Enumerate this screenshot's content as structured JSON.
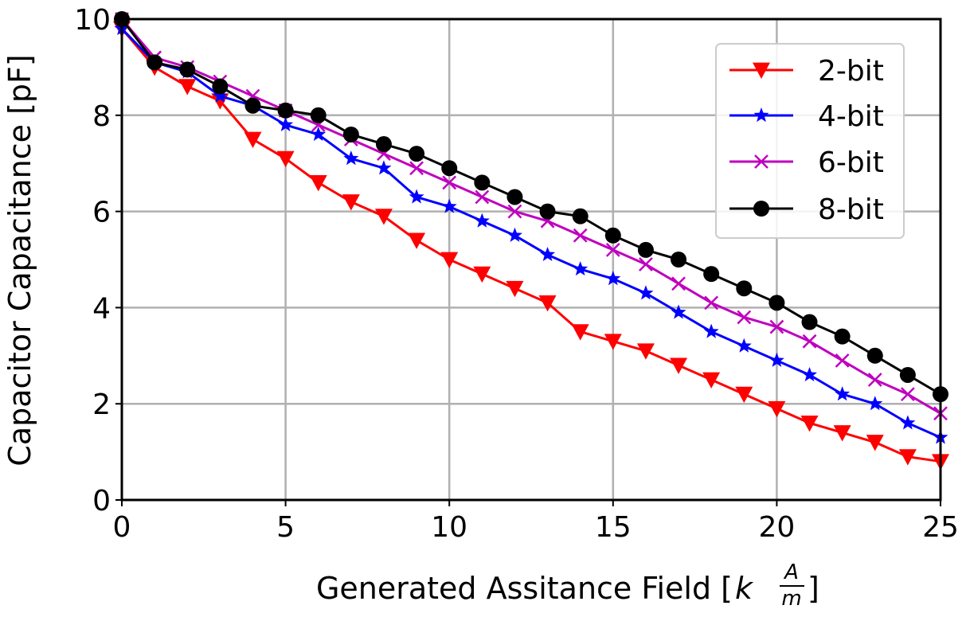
{
  "chart_data": {
    "type": "line",
    "title": "",
    "xlabel": "Generated Assitance Field [",
    "xlabel_unit": {
      "base": "k",
      "numerator": "A",
      "denominator": "m"
    },
    "xlabel_suffix": "]",
    "ylabel": "Capacitor Capacitance [pF]",
    "xlim": [
      0,
      25
    ],
    "ylim": [
      0,
      10
    ],
    "xticks": [
      0,
      5,
      10,
      15,
      20,
      25
    ],
    "yticks": [
      0,
      2,
      4,
      6,
      8,
      10
    ],
    "grid": true,
    "legend_position": "top-right",
    "x": [
      0,
      1,
      2,
      3,
      4,
      5,
      6,
      7,
      8,
      9,
      10,
      11,
      12,
      13,
      14,
      15,
      16,
      17,
      18,
      19,
      20,
      21,
      22,
      23,
      24,
      25
    ],
    "series": [
      {
        "name": "2-bit",
        "color": "#ff0000",
        "marker": "triangle-down",
        "values": [
          9.8,
          9.0,
          8.6,
          8.3,
          7.5,
          7.1,
          6.6,
          6.2,
          5.9,
          5.4,
          5.0,
          4.7,
          4.4,
          4.1,
          3.5,
          3.3,
          3.1,
          2.8,
          2.5,
          2.2,
          1.9,
          1.6,
          1.4,
          1.2,
          0.9,
          0.8
        ]
      },
      {
        "name": "4-bit",
        "color": "#0000ff",
        "marker": "star",
        "values": [
          9.8,
          9.1,
          8.9,
          8.4,
          8.2,
          7.8,
          7.6,
          7.1,
          6.9,
          6.3,
          6.1,
          5.8,
          5.5,
          5.1,
          4.8,
          4.6,
          4.3,
          3.9,
          3.5,
          3.2,
          2.9,
          2.6,
          2.2,
          2.0,
          1.6,
          1.3
        ]
      },
      {
        "name": "6-bit",
        "color": "#bf00bf",
        "marker": "x",
        "values": [
          10.0,
          9.2,
          9.0,
          8.7,
          8.4,
          8.1,
          7.8,
          7.5,
          7.2,
          6.9,
          6.6,
          6.3,
          6.0,
          5.8,
          5.5,
          5.2,
          4.9,
          4.5,
          4.1,
          3.8,
          3.6,
          3.3,
          2.9,
          2.5,
          2.2,
          1.8
        ]
      },
      {
        "name": "8-bit",
        "color": "#000000",
        "marker": "circle",
        "values": [
          10.0,
          9.1,
          8.95,
          8.6,
          8.2,
          8.1,
          8.0,
          7.6,
          7.4,
          7.2,
          6.9,
          6.6,
          6.3,
          6.0,
          5.9,
          5.5,
          5.2,
          5.0,
          4.7,
          4.4,
          4.1,
          3.7,
          3.4,
          3.0,
          2.6,
          2.2
        ]
      }
    ]
  }
}
